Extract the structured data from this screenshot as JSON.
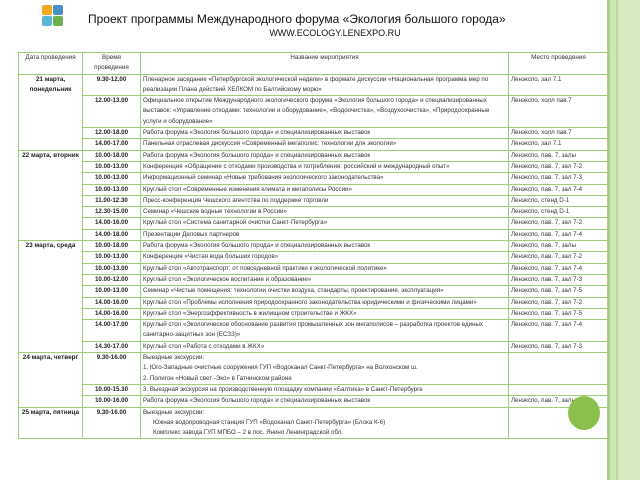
{
  "header": {
    "title": "Проект программы Международного форума «Экология большого города»",
    "url": "WWW.ECOLOGY.LENEXPO.RU",
    "logo_colors": [
      "#f5a623",
      "#4a90c2",
      "#5bb8d6",
      "#6ab04c"
    ]
  },
  "table": {
    "columns": [
      "Дата проведения",
      "Время проведения",
      "Название мероприятия",
      "Место проведения"
    ],
    "days": [
      {
        "date": "21 марта, понедельник",
        "rows": [
          {
            "time": "9.30-12.00",
            "name": "Пленарное заседание «Петербургской экологической недели» в формате дискуссии «Национальная программа мер по реализации Плана действий ХЕЛКОМ по Балтийскому морю»",
            "place": "Ленэкспо, зал 7.1"
          },
          {
            "time": "12.00-13.00",
            "name": "Официальное открытие Международного экологического форума «Экология большого города» и специализированных выставок: «Управление отходами: технологии и оборудование», «Водоочистка», «Воздухоочистка», «Природоохранные услуги и оборудование»",
            "place": "Ленэкспо, холл пав.7"
          },
          {
            "time": "12.00-18.00",
            "name": "Работа форума «Экология большого города» и специализированных выставок",
            "place": "Ленэкспо, холл пав.7"
          },
          {
            "time": "14.00-17.00",
            "name": "Панельная отраслевая дискуссия «Современный мегаполис: технологии для экологии»",
            "place": "Ленэкспо, зал 7.1"
          }
        ]
      },
      {
        "date": "22 марта, вторник",
        "rows": [
          {
            "time": "10.00-18.00",
            "name": "Работа форума «Экология большого города» и специализированных выставок",
            "place": "Ленэкспо, пав. 7, залы"
          },
          {
            "time": "10.00-13.00",
            "name": "Конференция «Обращение с отходами производства и потребления: российский и международный опыт»",
            "place": "Ленэкспо, пав. 7, зал 7-2"
          },
          {
            "time": "10.00-13.00",
            "name": "Информационный семинар «Новые требования экологического законодательства»",
            "place": "Ленэкспо, пав. 7, зал 7-3"
          },
          {
            "time": "10.00-13.00",
            "name": "Круглый стол «Современные изменения климата и мегаполисы России»",
            "place": "Ленэкспо, пав. 7, зал 7-4"
          },
          {
            "time": "11.00-12.30",
            "name": "Пресс-конференция Чешского агентства по поддержке торговли",
            "place": "Ленэкспо, стенд D-1"
          },
          {
            "time": "12.30-15.00",
            "name": "Семинар «Чешские водные технологии в России»",
            "place": "Ленэкспо, стенд D-1"
          },
          {
            "time": "14.00-16.00",
            "name": "Круглый стол «Система санитарной очистки Санкт-Петербурга»",
            "place": "Ленэкспо, пав. 7, зал 7-2"
          },
          {
            "time": "14.00-18.00",
            "name": "Презентации Деловых партнеров",
            "place": "Ленэкспо, пав. 7, зал 7-4"
          }
        ]
      },
      {
        "date": "23 марта, среда",
        "rows": [
          {
            "time": "10.00-18.00",
            "name": "Работа форума «Экология большого города» и специализированных выставок",
            "place": "Ленэкспо, пав. 7, залы"
          },
          {
            "time": "10.00-13.00",
            "name": "Конференция «Чистая вода больших городов»",
            "place": "Ленэкспо, пав. 7, зал 7-2"
          },
          {
            "time": "10.00-13.00",
            "name": "Круглый стол «Автотранспорт: от повседневной практики к экологической политике»",
            "place": "Ленэкспо, пав. 7, зал 7-4"
          },
          {
            "time": "10.00-12.00",
            "name": "Круглый стол «Экологическое воспитание и образование»",
            "place": "Ленэкспо, пав. 7, зал 7-3"
          },
          {
            "time": "10.00-13.00",
            "name": "Семинар «Чистые помещения: технологии очистки воздуха, стандарты, проектирование, эксплуатация»",
            "place": "Ленэкспо, пав. 7, зал 7-5"
          },
          {
            "time": "14.00-16.00",
            "name": "Круглый стол «Проблемы исполнения природоохранного законодательства юридическими и физическими лицами»",
            "place": "Ленэкспо, пав. 7, зал 7-2"
          },
          {
            "time": "14.00-16.00",
            "name": "Круглый стол «Энергоэффективность в жилищном строительстве и ЖКХ»",
            "place": "Ленэкспо, пав. 7, зал 7-5"
          },
          {
            "time": "14.00-17.00",
            "name": "Круглый стол «Экологическое обоснование развития промышленных зон мегаполисов – разработка проектов единых санитарно-защитных зон (ЕСЗЗ)»",
            "place": "Ленэкспо, пав. 7, зал 7-4"
          },
          {
            "time": "14.30-17.00",
            "name": "Круглый стол «Работа с отходами в ЖКХ»",
            "place": "Ленэкспо, пав. 7, зал 7-3"
          }
        ]
      },
      {
        "date": "24 марта, четверг",
        "rows": [
          {
            "time": "9.30-16.00",
            "name": "Выездные экскурсии:",
            "items": [
              "1. Юго-Западные очистные сооружения ГУП «Водоканал Санкт-Петербурга» на Волхонском ш.",
              "2. Полигон «Новый свет -Эко» в Гатчинском районе"
            ],
            "place": ""
          },
          {
            "time": "10.00-15.30",
            "name": "3. Выездная экскурсия на производственную площадку компании «Балтика» в Санкт-Петербурге",
            "place": ""
          },
          {
            "time": "10.00-16.00",
            "name": "Работа форума «Экология большого города» и специализированных выставок",
            "place": "Ленэкспо, пав. 7, залы"
          }
        ]
      },
      {
        "date": "25 марта, пятница",
        "rows": [
          {
            "time": "9.30-16.00",
            "name": "Выездные экскурсии:",
            "items": [
              "Южная водопроводная станция ГУП «Водоканал Санкт-Петербурга» (Блока К-6)",
              "Комплекс завода ГУП МПБО – 2 в пос. Янино Ленинградской обл."
            ],
            "place": ""
          }
        ]
      }
    ]
  }
}
